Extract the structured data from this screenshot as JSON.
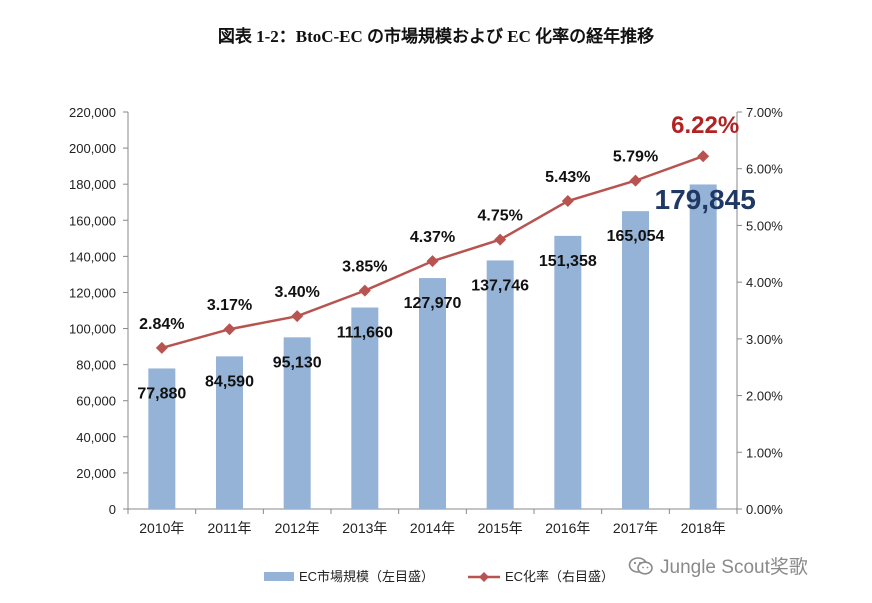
{
  "title": "図表 1-2：BtoC-EC の市場規模および EC 化率の経年推移",
  "watermark": "Jungle Scout奖歌",
  "colors": {
    "bar": "#95B3D7",
    "line": "#B85450",
    "highlight_red": "#B22222",
    "highlight_navy": "#1F3864"
  },
  "chart_data": {
    "type": "bar",
    "categories": [
      "2010年",
      "2011年",
      "2012年",
      "2013年",
      "2014年",
      "2015年",
      "2016年",
      "2017年",
      "2018年"
    ],
    "series": [
      {
        "name": "EC市場規模（左目盛）",
        "type": "bar",
        "axis": "left",
        "values": [
          77880,
          84590,
          95130,
          111660,
          127970,
          137746,
          151358,
          165054,
          179845
        ],
        "labels": [
          "77,880",
          "84,590",
          "95,130",
          "111,660",
          "127,970",
          "137,746",
          "151,358",
          "165,054",
          "179,845"
        ]
      },
      {
        "name": "EC化率（右目盛）",
        "type": "line",
        "axis": "right",
        "values": [
          2.84,
          3.17,
          3.4,
          3.85,
          4.37,
          4.75,
          5.43,
          5.79,
          6.22
        ],
        "labels": [
          "2.84%",
          "3.17%",
          "3.40%",
          "3.85%",
          "4.37%",
          "4.75%",
          "5.43%",
          "5.79%",
          "6.22%"
        ]
      }
    ],
    "y_left": {
      "min": 0,
      "max": 220000,
      "ticks": [
        "0",
        "20,000",
        "40,000",
        "60,000",
        "80,000",
        "100,000",
        "120,000",
        "140,000",
        "160,000",
        "180,000",
        "200,000",
        "220,000"
      ]
    },
    "y_right": {
      "min": 0,
      "max": 7,
      "ticks": [
        "0.00%",
        "1.00%",
        "2.00%",
        "3.00%",
        "4.00%",
        "5.00%",
        "6.00%",
        "7.00%"
      ]
    },
    "grid": false,
    "legend_position": "bottom"
  }
}
